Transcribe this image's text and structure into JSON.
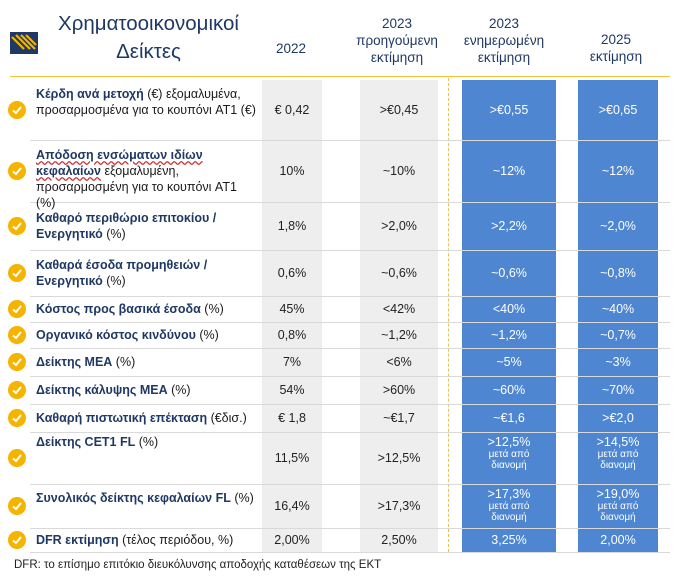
{
  "title": "Χρηματοοικονομικοί Δείκτες",
  "columns": [
    {
      "lines": [
        "2022"
      ]
    },
    {
      "lines": [
        "2023",
        "προηγούμενη",
        "εκτίμηση"
      ]
    },
    {
      "lines": [
        "2023",
        "ενημερωμένη",
        "εκτίμηση"
      ]
    },
    {
      "lines": [
        "2025",
        "εκτίμηση"
      ]
    }
  ],
  "rows": [
    {
      "bold": "Κέρδη ανά μετοχή",
      "rest": " (€) εξομαλυμένα, προσαρμοσμένα για το κουπόνι AT1 (€)",
      "v2022": "€ 0,42",
      "v2023p": ">€0,45",
      "v2023u": ">€0,55",
      "v2025": ">€0,65"
    },
    {
      "bold": "Απόδοση ενσώματων ιδίων κεφαλαίων",
      "rest": " εξομαλυμένη, προσαρμοσμένη για το κουπόνι AT1 (%)",
      "v2022": "10%",
      "v2023p": "~10%",
      "v2023u": "~12%",
      "v2025": "~12%"
    },
    {
      "bold": "Καθαρό περιθώριο επιτοκίου / Ενεργητικό",
      "rest": " (%)",
      "v2022": "1,8%",
      "v2023p": ">2,0%",
      "v2023u": ">2,2%",
      "v2025": "~2,0%"
    },
    {
      "bold": "Καθαρά έσοδα προμηθειών / Ενεργητικό",
      "rest": " (%)",
      "v2022": "0,6%",
      "v2023p": "~0,6%",
      "v2023u": "~0,6%",
      "v2025": "~0,8%"
    },
    {
      "bold": "Κόστος προς βασικά έσοδα",
      "rest": " (%)",
      "v2022": "45%",
      "v2023p": "<42%",
      "v2023u": "<40%",
      "v2025": "~40%"
    },
    {
      "bold": "Οργανικό κόστος κινδύνου",
      "rest": " (%)",
      "v2022": "0,8%",
      "v2023p": "~1,2%",
      "v2023u": "~1,2%",
      "v2025": "~0,7%"
    },
    {
      "bold": "Δείκτης ΜΕΑ",
      "rest": " (%)",
      "v2022": "7%",
      "v2023p": "<6%",
      "v2023u": "~5%",
      "v2025": "~3%"
    },
    {
      "bold": "Δείκτης κάλυψης ΜΕΑ",
      "rest": "  (%)",
      "v2022": "54%",
      "v2023p": ">60%",
      "v2023u": "~60%",
      "v2025": "~70%"
    },
    {
      "bold": "Καθαρή πιστωτική επέκταση",
      "rest": " (€δισ.)",
      "v2022": "€ 1,8",
      "v2023p": "~€1,7",
      "v2023u": "~€1,6",
      "v2025": ">€2,0"
    },
    {
      "bold": "Δείκτης CET1 FL",
      "rest": " (%)",
      "v2022": "11,5%",
      "v2023p": ">12,5%",
      "v2023u": ">12,5%",
      "v2023u_note": "μετά από διανομή",
      "v2025": ">14,5%",
      "v2025_note": "μετά από διανομή"
    },
    {
      "bold": "Συνολικός δείκτης κεφαλαίων FL",
      "rest": " (%)",
      "v2022": "16,4%",
      "v2023p": ">17,3%",
      "v2023u": ">17,3%",
      "v2023u_note": "μετά από διανομή",
      "v2025": ">19,0%",
      "v2025_note": "μετά από διανομή"
    },
    {
      "bold": "DFR εκτίμηση",
      "rest": " (τέλος περιόδου, %)",
      "v2022": "2,00%",
      "v2023p": "2,50%",
      "v2023u": "3,25%",
      "v2025": "2,00%"
    }
  ],
  "footer": "DFR: το επίσημο επιτόκιο διευκόλυνσης αποδοχής καταθέσεων της ΕΚΤ",
  "colors": {
    "navy": "#1f3864",
    "gold": "#f4b400",
    "blue": "#4e86d1"
  }
}
